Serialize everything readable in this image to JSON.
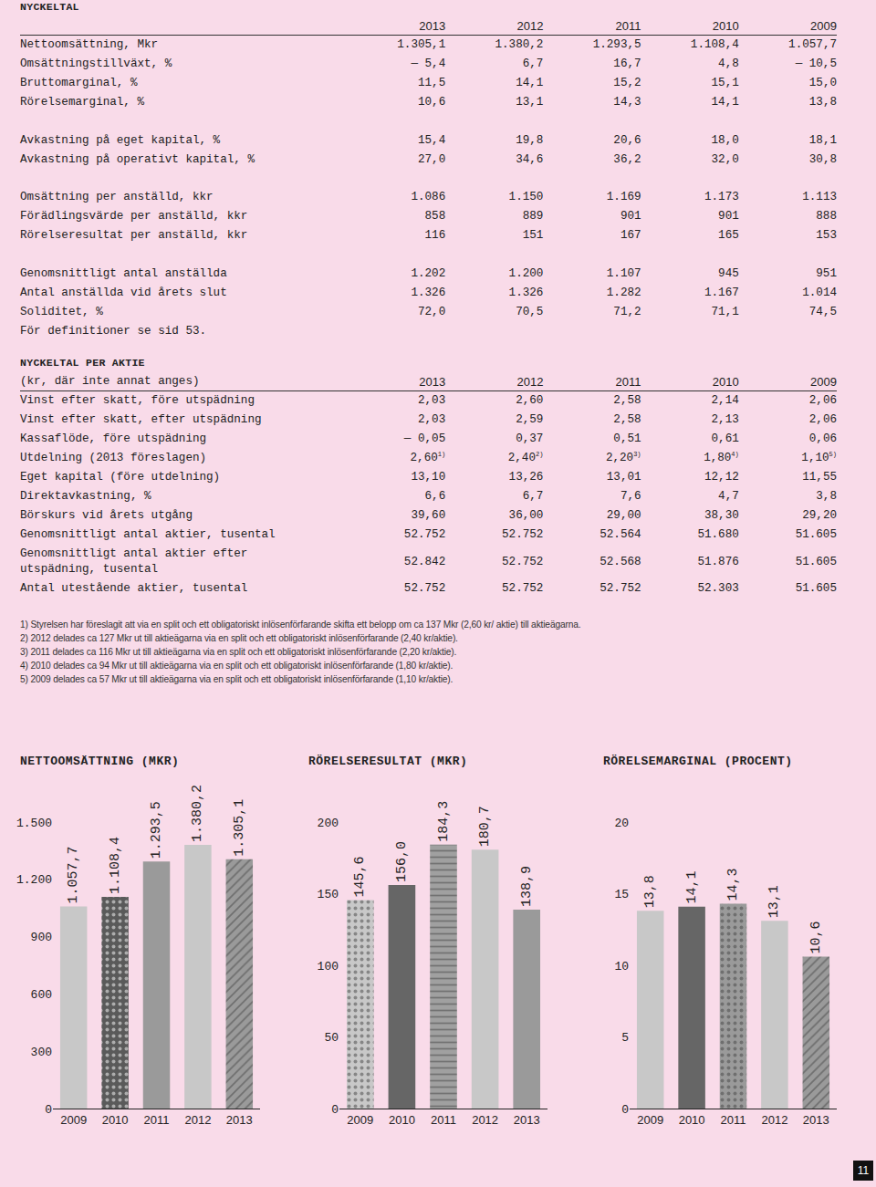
{
  "tables": [
    {
      "title": "NYCKELTAL",
      "header": [
        "",
        "2013",
        "2012",
        "2011",
        "2010",
        "2009"
      ],
      "groups": [
        [
          [
            "Nettoomsättning, Mkr",
            "1.305,1",
            "1.380,2",
            "1.293,5",
            "1.108,4",
            "1.057,7"
          ],
          [
            "Omsättningstillväxt, %",
            "— 5,4",
            "6,7",
            "16,7",
            "4,8",
            "— 10,5"
          ],
          [
            "Bruttomarginal, %",
            "11,5",
            "14,1",
            "15,2",
            "15,1",
            "15,0"
          ],
          [
            "Rörelsemarginal, %",
            "10,6",
            "13,1",
            "14,3",
            "14,1",
            "13,8"
          ]
        ],
        [
          [
            "Avkastning på eget kapital, %",
            "15,4",
            "19,8",
            "20,6",
            "18,0",
            "18,1"
          ],
          [
            "Avkastning på operativt kapital, %",
            "27,0",
            "34,6",
            "36,2",
            "32,0",
            "30,8"
          ]
        ],
        [
          [
            "Omsättning per anställd, kkr",
            "1.086",
            "1.150",
            "1.169",
            "1.173",
            "1.113"
          ],
          [
            "Förädlingsvärde per anställd, kkr",
            "858",
            "889",
            "901",
            "901",
            "888"
          ],
          [
            "Rörelseresultat per anställd, kkr",
            "116",
            "151",
            "167",
            "165",
            "153"
          ]
        ],
        [
          [
            "Genomsnittligt antal anställda",
            "1.202",
            "1.200",
            "1.107",
            "945",
            "951"
          ],
          [
            "Antal anställda vid årets slut",
            "1.326",
            "1.326",
            "1.282",
            "1.167",
            "1.014"
          ],
          [
            "Soliditet, %",
            "72,0",
            "70,5",
            "71,2",
            "71,1",
            "74,5"
          ]
        ]
      ],
      "note": "För definitioner se sid 53."
    },
    {
      "title": "NYCKELTAL PER AKTIE",
      "header": [
        "(kr, där inte annat anges)",
        "2013",
        "2012",
        "2011",
        "2010",
        "2009"
      ],
      "groups": [
        [
          [
            "Vinst efter skatt, före utspädning",
            "2,03",
            "2,60",
            "2,58",
            "2,14",
            "2,06"
          ],
          [
            "Vinst efter skatt, efter utspädning",
            "2,03",
            "2,59",
            "2,58",
            "2,13",
            "2,06"
          ],
          [
            "Kassaflöde, före utspädning",
            "— 0,05",
            "0,37",
            "0,51",
            "0,61",
            "0,06"
          ],
          [
            "Utdelning (2013 föreslagen)",
            {
              "text": "2,60",
              "sup": "1)"
            },
            {
              "text": "2,40",
              "sup": "2)"
            },
            {
              "text": "2,20",
              "sup": "3)"
            },
            {
              "text": "1,80",
              "sup": "4)"
            },
            {
              "text": "1,10",
              "sup": "5)"
            }
          ],
          [
            "Eget kapital (före utdelning)",
            "13,10",
            "13,26",
            "13,01",
            "12,12",
            "11,55"
          ],
          [
            "Direktavkastning, %",
            "6,6",
            "6,7",
            "7,6",
            "4,7",
            "3,8"
          ],
          [
            "Börskurs vid årets utgång",
            "39,60",
            "36,00",
            "29,00",
            "38,30",
            "29,20"
          ],
          [
            "Genomsnittligt antal aktier, tusental",
            "52.752",
            "52.752",
            "52.564",
            "51.680",
            "51.605"
          ],
          [
            "Genomsnittligt antal aktier efter utspädning, tusental",
            "52.842",
            "52.752",
            "52.568",
            "51.876",
            "51.605"
          ],
          [
            "Antal utestående aktier, tusental",
            "52.752",
            "52.752",
            "52.752",
            "52.303",
            "51.605"
          ]
        ]
      ]
    }
  ],
  "footnotes": [
    "1) Styrelsen har föreslagit att via en split och ett obligatoriskt inlösenförfarande skifta ett belopp om ca 137 Mkr (2,60 kr/ aktie) till aktieägarna.",
    "2) 2012 delades ca 127 Mkr ut till aktieägarna via en split och ett obligatoriskt inlösenförfarande (2,40 kr/aktie).",
    "3) 2011 delades ca 116 Mkr ut till aktieägarna via en split och ett obligatoriskt inlösenförfarande (2,20 kr/aktie).",
    "4) 2010 delades ca 94 Mkr ut till aktieägarna via en split och ett obligatoriskt inlösenförfarande (1,80 kr/aktie).",
    "5) 2009 delades ca 57 Mkr ut till aktieägarna via en split och ett obligatoriskt inlösenförfarande (1,10 kr/aktie)."
  ],
  "chart_data": [
    {
      "type": "bar",
      "title": "NETTOOMSÄTTNING (MKR)",
      "categories": [
        "2009",
        "2010",
        "2011",
        "2012",
        "2013"
      ],
      "values": [
        1057.7,
        1108.4,
        1293.5,
        1380.2,
        1305.1
      ],
      "value_labels": [
        "1.057,7",
        "1.108,4",
        "1.293,5",
        "1.380,2",
        "1.305,1"
      ],
      "colors": [
        "#c8c8c8",
        "#5a5a5a",
        "#9a9a9a",
        "#c8c8c8",
        "#9a9a9a"
      ],
      "ylim": [
        0,
        1500
      ],
      "yticks": [
        0,
        300,
        600,
        900,
        {
          "value": 1200,
          "label": "1.200"
        },
        {
          "value": 1500,
          "label": "1.500"
        }
      ],
      "data_labels": true,
      "grid": false
    },
    {
      "type": "bar",
      "title": "RÖRELSERESULTAT (MKR)",
      "categories": [
        "2009",
        "2010",
        "2011",
        "2012",
        "2013"
      ],
      "values": [
        145.6,
        156.0,
        184.3,
        180.7,
        138.9
      ],
      "value_labels": [
        "145,6",
        "156,0",
        "184,3",
        "180,7",
        "138,9"
      ],
      "colors": [
        "#c8c8c8",
        "#666666",
        "#a0a0a0",
        "#c8c8c8",
        "#9a9a9a"
      ],
      "ylim": [
        0,
        200
      ],
      "yticks": [
        0,
        50,
        100,
        150,
        200
      ],
      "data_labels": true,
      "grid": false
    },
    {
      "type": "bar",
      "title": "RÖRELSEMARGINAL (PROCENT)",
      "categories": [
        "2009",
        "2010",
        "2011",
        "2012",
        "2013"
      ],
      "values": [
        13.8,
        14.1,
        14.3,
        13.1,
        10.6
      ],
      "value_labels": [
        "13,8",
        "14,1",
        "14,3",
        "13,1",
        "10,6"
      ],
      "colors": [
        "#c8c8c8",
        "#666666",
        "#9a9a9a",
        "#c8c8c8",
        "#9a9a9a"
      ],
      "ylim": [
        0,
        20
      ],
      "yticks": [
        0,
        5,
        10,
        15,
        20
      ],
      "data_labels": true,
      "grid": false
    }
  ],
  "page_number": "11"
}
